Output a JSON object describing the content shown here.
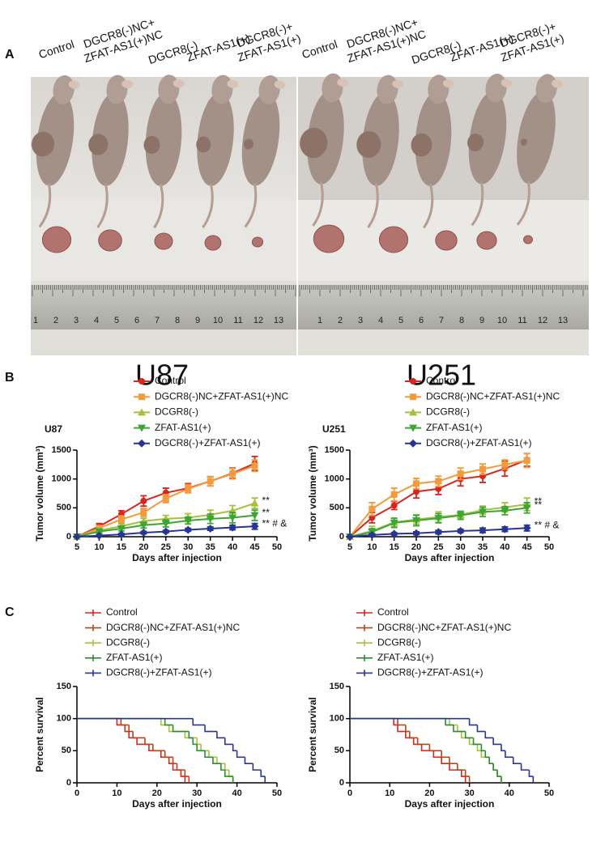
{
  "panel_a": {
    "label": "A",
    "group_labels": [
      [
        "Control"
      ],
      [
        "DGCR8(-)NC+",
        "ZFAT-AS1(+)NC"
      ],
      [
        "DGCR8(-)"
      ],
      [
        "ZFAT-AS1(+)"
      ],
      [
        "DGCR8(-)+",
        "ZFAT-AS1(+)"
      ]
    ],
    "ruler_numbers": [
      1,
      2,
      3,
      4,
      5,
      6,
      7,
      8,
      9,
      10,
      11,
      12,
      13
    ],
    "cell_lines": [
      "U87",
      "U251"
    ]
  },
  "panel_b": {
    "label": "B"
  },
  "panel_c": {
    "label": "C"
  },
  "chart_data": [
    {
      "type": "line",
      "title": "U87",
      "xlabel": "Days after injection",
      "ylabel": "Tumor volume (mm³)",
      "xlim": [
        5,
        50
      ],
      "xticks": [
        5,
        10,
        15,
        20,
        25,
        30,
        35,
        40,
        45,
        50
      ],
      "ylim": [
        0,
        1500
      ],
      "yticks": [
        0,
        500,
        1000,
        1500
      ],
      "x": [
        5,
        10,
        15,
        20,
        25,
        30,
        35,
        40,
        45
      ],
      "series": [
        {
          "name": "Control",
          "color": "#d7261e",
          "marker": "circle",
          "values": [
            0,
            180,
            390,
            620,
            760,
            840,
            960,
            1100,
            1270
          ],
          "errors": [
            0,
            50,
            60,
            90,
            80,
            80,
            80,
            90,
            120
          ]
        },
        {
          "name": "DGCR8(-)NC+ZFAT-AS1(+)NC",
          "color": "#f39a3c",
          "marker": "square",
          "values": [
            0,
            150,
            300,
            420,
            660,
            830,
            960,
            1090,
            1230
          ],
          "errors": [
            0,
            40,
            60,
            70,
            70,
            70,
            80,
            90,
            100
          ]
        },
        {
          "name": "DCGR8(-)",
          "color": "#a7c13b",
          "marker": "triangle-up",
          "values": [
            0,
            110,
            180,
            270,
            310,
            330,
            380,
            450,
            580
          ],
          "errors": [
            0,
            30,
            40,
            50,
            60,
            70,
            80,
            90,
            90
          ],
          "end_label": "**"
        },
        {
          "name": "ZFAT-AS1(+)",
          "color": "#3ba535",
          "marker": "triangle-down",
          "values": [
            0,
            90,
            140,
            200,
            230,
            280,
            310,
            330,
            370
          ],
          "errors": [
            0,
            30,
            40,
            50,
            60,
            60,
            80,
            90,
            90
          ],
          "end_label": "**"
        },
        {
          "name": "DGCR8(-)+ZFAT-AS1(+)",
          "color": "#283593",
          "marker": "diamond",
          "values": [
            0,
            20,
            40,
            70,
            90,
            120,
            140,
            160,
            180
          ],
          "errors": [
            0,
            10,
            15,
            20,
            20,
            25,
            30,
            40,
            50
          ],
          "end_label": "** # &"
        }
      ]
    },
    {
      "type": "line",
      "title": "U251",
      "xlabel": "Days after injection",
      "ylabel": "Tumor volume (mm³)",
      "xlim": [
        5,
        50
      ],
      "xticks": [
        5,
        10,
        15,
        20,
        25,
        30,
        35,
        40,
        45,
        50
      ],
      "ylim": [
        0,
        1500
      ],
      "yticks": [
        0,
        500,
        1000,
        1500
      ],
      "x": [
        5,
        10,
        15,
        20,
        25,
        30,
        35,
        40,
        45
      ],
      "series": [
        {
          "name": "Control",
          "color": "#d7261e",
          "marker": "circle",
          "values": [
            0,
            330,
            540,
            780,
            830,
            1000,
            1050,
            1180,
            1330
          ],
          "errors": [
            0,
            90,
            70,
            110,
            100,
            120,
            110,
            130,
            110
          ]
        },
        {
          "name": "DGCR8(-)NC+ZFAT-AS1(+)NC",
          "color": "#f39a3c",
          "marker": "square",
          "values": [
            0,
            480,
            730,
            920,
            960,
            1090,
            1170,
            1250,
            1320
          ],
          "errors": [
            0,
            110,
            110,
            90,
            90,
            100,
            90,
            80,
            120
          ]
        },
        {
          "name": "DCGR8(-)",
          "color": "#a7c13b",
          "marker": "triangle-up",
          "values": [
            0,
            100,
            250,
            300,
            340,
            380,
            460,
            510,
            560
          ],
          "errors": [
            0,
            80,
            70,
            80,
            90,
            60,
            70,
            80,
            110
          ],
          "end_label": "**"
        },
        {
          "name": "ZFAT-AS1(+)",
          "color": "#3ba535",
          "marker": "triangle-down",
          "values": [
            0,
            80,
            240,
            280,
            320,
            370,
            430,
            450,
            500
          ],
          "errors": [
            0,
            60,
            80,
            90,
            80,
            70,
            80,
            70,
            90
          ],
          "end_label": "**"
        },
        {
          "name": "DGCR8(-)+ZFAT-AS1(+)",
          "color": "#283593",
          "marker": "diamond",
          "values": [
            0,
            30,
            50,
            60,
            80,
            100,
            110,
            130,
            150
          ],
          "errors": [
            0,
            20,
            20,
            25,
            30,
            30,
            40,
            40,
            50
          ],
          "end_label": "** # &"
        }
      ]
    },
    {
      "type": "step",
      "xlabel": "Days after injection",
      "ylabel": "Percent survival",
      "xlim": [
        0,
        50
      ],
      "xticks": [
        0,
        10,
        20,
        30,
        40,
        50
      ],
      "ylim": [
        0,
        150
      ],
      "yticks": [
        0,
        50,
        100,
        150
      ],
      "series": [
        {
          "name": "Control",
          "color": "#d7261e",
          "x": [
            0,
            10,
            12,
            13,
            15,
            18,
            21,
            23,
            24,
            26,
            27
          ],
          "values": [
            100,
            90,
            80,
            70,
            60,
            50,
            40,
            30,
            20,
            10,
            0
          ]
        },
        {
          "name": "DGCR8(-)NC+ZFAT-AS1(+)NC",
          "color": "#b4451c",
          "x": [
            0,
            11,
            13,
            14,
            17,
            19,
            22,
            24,
            25,
            27,
            28
          ],
          "values": [
            100,
            90,
            80,
            70,
            60,
            50,
            40,
            30,
            20,
            10,
            0
          ]
        },
        {
          "name": "DCGR8(-)",
          "color": "#a7c13b",
          "x": [
            0,
            21,
            23,
            27,
            30,
            31,
            33,
            35,
            37,
            38,
            39
          ],
          "values": [
            100,
            90,
            80,
            70,
            60,
            50,
            40,
            30,
            20,
            10,
            0
          ]
        },
        {
          "name": "ZFAT-AS1(+)",
          "color": "#2e8b2e",
          "x": [
            0,
            22,
            24,
            28,
            29,
            30,
            32,
            34,
            36,
            37,
            39
          ],
          "values": [
            100,
            90,
            80,
            70,
            60,
            50,
            40,
            30,
            20,
            10,
            0
          ]
        },
        {
          "name": "DGCR8(-)+ZFAT-AS1(+)",
          "color": "#283593",
          "x": [
            0,
            29,
            32,
            35,
            37,
            39,
            40,
            42,
            44,
            46,
            47
          ],
          "values": [
            100,
            90,
            80,
            70,
            60,
            50,
            40,
            30,
            20,
            10,
            0
          ]
        }
      ]
    },
    {
      "type": "step",
      "xlabel": "Days after injection",
      "ylabel": "Percent survival",
      "xlim": [
        0,
        50
      ],
      "xticks": [
        0,
        10,
        20,
        30,
        40,
        50
      ],
      "ylim": [
        0,
        150
      ],
      "yticks": [
        0,
        50,
        100,
        150
      ],
      "series": [
        {
          "name": "Control",
          "color": "#d7261e",
          "x": [
            0,
            11,
            12,
            14,
            16,
            18,
            21,
            23,
            25,
            28,
            29
          ],
          "values": [
            100,
            90,
            80,
            70,
            60,
            50,
            40,
            30,
            20,
            10,
            0
          ]
        },
        {
          "name": "DGCR8(-)NC+ZFAT-AS1(+)NC",
          "color": "#b4451c",
          "x": [
            0,
            12,
            14,
            15,
            17,
            20,
            23,
            25,
            27,
            29,
            30
          ],
          "values": [
            100,
            90,
            80,
            70,
            60,
            50,
            40,
            30,
            20,
            10,
            0
          ]
        },
        {
          "name": "DCGR8(-)",
          "color": "#a7c13b",
          "x": [
            0,
            25,
            27,
            28,
            30,
            32,
            33,
            35,
            36,
            37,
            38
          ],
          "values": [
            100,
            90,
            80,
            70,
            60,
            50,
            40,
            30,
            20,
            10,
            0
          ]
        },
        {
          "name": "ZFAT-AS1(+)",
          "color": "#2e8b2e",
          "x": [
            0,
            24,
            26,
            29,
            31,
            33,
            34,
            35,
            36,
            37,
            38
          ],
          "values": [
            100,
            90,
            80,
            70,
            60,
            50,
            40,
            30,
            20,
            10,
            0
          ]
        },
        {
          "name": "DGCR8(-)+ZFAT-AS1(+)",
          "color": "#283593",
          "x": [
            0,
            30,
            32,
            34,
            36,
            38,
            39,
            41,
            43,
            45,
            46
          ],
          "values": [
            100,
            90,
            80,
            70,
            60,
            50,
            40,
            30,
            20,
            10,
            0
          ]
        }
      ]
    }
  ]
}
